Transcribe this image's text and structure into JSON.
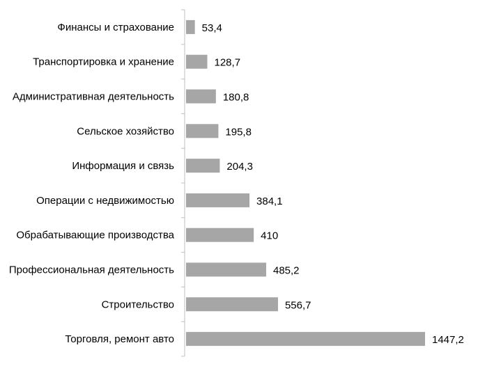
{
  "chart_data": {
    "type": "bar",
    "orientation": "horizontal",
    "categories": [
      "Финансы и страхование",
      "Транспортировка и хранение",
      "Административная деятельность",
      "Сельское хозяйство",
      "Информация и связь",
      "Операции с недвижимостью",
      "Обрабатывающие производства",
      "Профессиональная деятельность",
      "Строительство",
      "Торговля, ремонт авто"
    ],
    "values": [
      53.4,
      128.7,
      180.8,
      195.8,
      204.3,
      384.1,
      410,
      485.2,
      556.7,
      1447.2
    ],
    "value_labels": [
      "53,4",
      "128,7",
      "180,8",
      "195,8",
      "204,3",
      "384,1",
      "410",
      "485,2",
      "556,7",
      "1447,2"
    ],
    "title": "",
    "xlabel": "",
    "ylabel": "",
    "xlim": [
      0,
      1500
    ],
    "grid": false,
    "legend": "none",
    "bar_color": "#a6a6a6",
    "axis_color": "#bfbfbf"
  }
}
